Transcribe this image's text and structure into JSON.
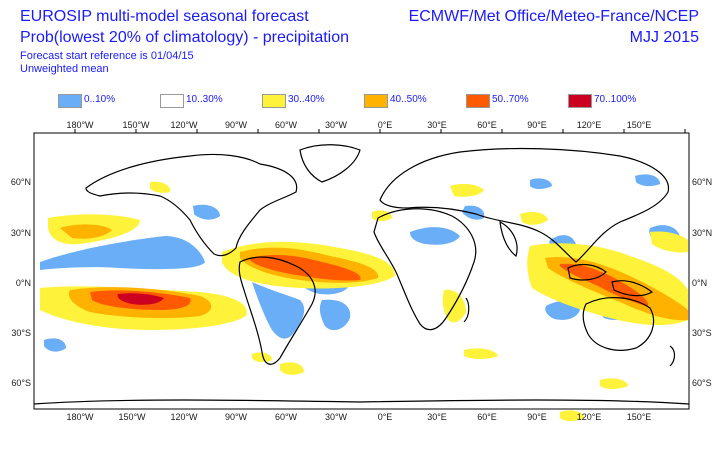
{
  "header": {
    "title": "EUROSIP multi-model seasonal forecast",
    "subtitle": "Prob(lowest 20% of climatology) - precipitation",
    "start_ref": "Forecast start reference is 01/04/15",
    "mean_type": "Unweighted mean",
    "centres": "ECMWF/Met Office/Meteo-France/NCEP",
    "season": "MJJ 2015"
  },
  "legend": [
    {
      "label": "0..10%",
      "color": "#6aaef8"
    },
    {
      "label": "10..30%",
      "color": "#ffffff"
    },
    {
      "label": "30..40%",
      "color": "#fff23a"
    },
    {
      "label": "40..50%",
      "color": "#ffb300"
    },
    {
      "label": "50..70%",
      "color": "#ff5a00"
    },
    {
      "label": "70..100%",
      "color": "#cc0020"
    }
  ],
  "axes": {
    "lon_labels": [
      "180°W",
      "150°W",
      "120°W",
      "90°W",
      "60°W",
      "30°W",
      "0°E",
      "30°E",
      "60°E",
      "90°E",
      "120°E",
      "150°E"
    ],
    "lat_labels": [
      "60°N",
      "30°N",
      "0°N",
      "30°S",
      "60°S"
    ]
  },
  "icons": {
    "coastline": "coastline-outline"
  }
}
